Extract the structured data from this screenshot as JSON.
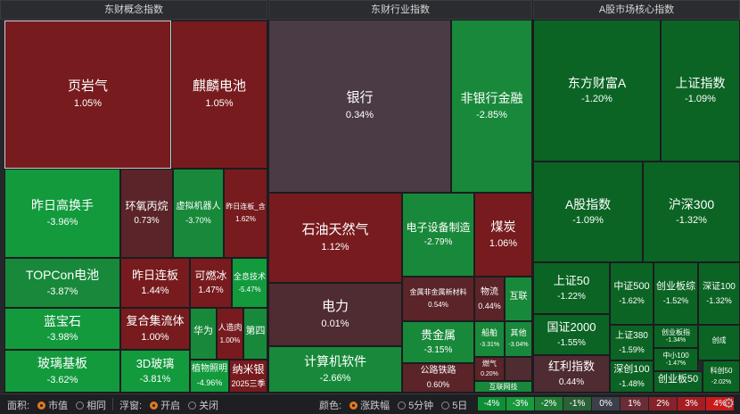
{
  "panels": {
    "concept": "东财概念指数",
    "industry": "东财行业指数",
    "core": "A股市场核心指数"
  },
  "concept_tiles": [
    {
      "name": "页岩气",
      "pct": "1.05%"
    },
    {
      "name": "麒麟电池",
      "pct": "1.05%"
    },
    {
      "name": "昨日高换手",
      "pct": "-3.96%"
    },
    {
      "name": "环氧丙烷",
      "pct": "0.73%"
    },
    {
      "name": "虚拟机器人",
      "pct": "-3.70%"
    },
    {
      "name": "昨日连板_含",
      "pct": "1.62%"
    },
    {
      "name": "TOPCon电池",
      "pct": "-3.87%"
    },
    {
      "name": "昨日连板",
      "pct": "1.44%"
    },
    {
      "name": "可燃冰",
      "pct": "1.47%"
    },
    {
      "name": "全息技术",
      "pct": "-5.47%"
    },
    {
      "name": "蓝宝石",
      "pct": "-3.98%"
    },
    {
      "name": "复合集流体",
      "pct": "1.00%"
    },
    {
      "name": "华为",
      "pct": ""
    },
    {
      "name": "人造肉",
      "pct": "1.00%"
    },
    {
      "name": "第四",
      "pct": ""
    },
    {
      "name": "玻璃基板",
      "pct": "-3.62%"
    },
    {
      "name": "3D玻璃",
      "pct": "-3.81%"
    },
    {
      "name": "植物照明",
      "pct": "-4.96%"
    },
    {
      "name": "纳米银",
      "pct": "2025三季"
    }
  ],
  "industry_tiles": [
    {
      "name": "银行",
      "pct": "0.34%"
    },
    {
      "name": "非银行金融",
      "pct": "-2.85%"
    },
    {
      "name": "石油天然气",
      "pct": "1.12%"
    },
    {
      "name": "电子设备制造",
      "pct": "-2.79%"
    },
    {
      "name": "煤炭",
      "pct": "1.06%"
    },
    {
      "name": "电力",
      "pct": "0.01%"
    },
    {
      "name": "金属非金属新材料",
      "pct": "0.54%"
    },
    {
      "name": "物流",
      "pct": "0.44%"
    },
    {
      "name": "互联",
      "pct": ""
    },
    {
      "name": "贵金属",
      "pct": "-3.15%"
    },
    {
      "name": "船舶",
      "pct": "-3.31%"
    },
    {
      "name": "其他",
      "pct": "-3.04%"
    },
    {
      "name": "计算机软件",
      "pct": "-2.66%"
    },
    {
      "name": "公路铁路",
      "pct": "0.60%"
    },
    {
      "name": "燃气",
      "pct": "0.20%"
    },
    {
      "name": "互联网技",
      "pct": ""
    }
  ],
  "core_tiles": [
    {
      "name": "东方财富A",
      "pct": "-1.20%"
    },
    {
      "name": "上证指数",
      "pct": "-1.09%"
    },
    {
      "name": "A股指数",
      "pct": "-1.09%"
    },
    {
      "name": "沪深300",
      "pct": "-1.32%"
    },
    {
      "name": "上证50",
      "pct": "-1.22%"
    },
    {
      "name": "中证500",
      "pct": "-1.62%"
    },
    {
      "name": "创业板综",
      "pct": "-1.52%"
    },
    {
      "name": "深证100",
      "pct": "-1.32%"
    },
    {
      "name": "国证2000",
      "pct": "-1.55%"
    },
    {
      "name": "上证380",
      "pct": "-1.59%"
    },
    {
      "name": "创业板指",
      "pct": "-1.34%"
    },
    {
      "name": "创成",
      "pct": ""
    },
    {
      "name": "中小100",
      "pct": "-1.47%"
    },
    {
      "name": "红利指数",
      "pct": "0.44%"
    },
    {
      "name": "深创100",
      "pct": "-1.48%"
    },
    {
      "name": "创业板50",
      "pct": ""
    },
    {
      "name": "科创50",
      "pct": "-2.02%"
    }
  ],
  "controls": {
    "area_label": "面积:",
    "area_options": [
      "市值",
      "相同"
    ],
    "float_label": "浮窗:",
    "float_options": [
      "开启",
      "关闭"
    ],
    "color_label": "颜色:",
    "color_options": [
      "涨跌幅",
      "5分钟",
      "5日"
    ]
  },
  "legend": [
    "-4%",
    "-3%",
    "-2%",
    "-1%",
    "0%",
    "1%",
    "2%",
    "3%",
    "4%"
  ],
  "legend_colors": [
    "#0e8f35",
    "#18993c",
    "#1f7d36",
    "#2a6136",
    "#3b3f4a",
    "#6a2c35",
    "#86222a",
    "#a31d22",
    "#c81b1b"
  ],
  "icons": {
    "settings": "gear-icon"
  }
}
